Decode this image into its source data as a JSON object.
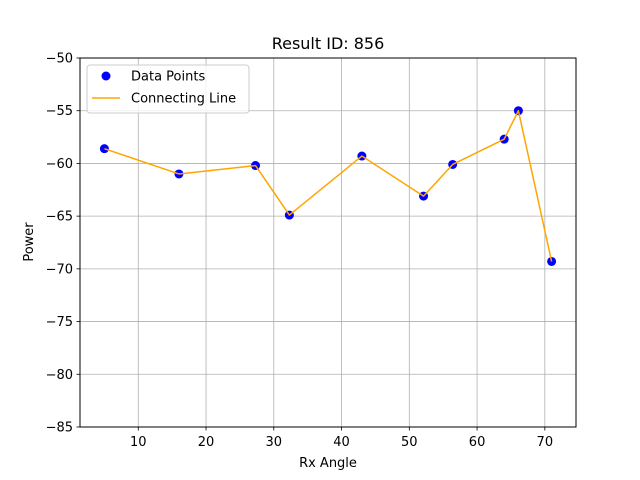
{
  "chart_data": {
    "type": "scatter",
    "title": "Result ID: 856",
    "xlabel": "Rx Angle",
    "ylabel": "Power",
    "xlim": [
      1.4,
      74.6
    ],
    "ylim": [
      -85,
      -50
    ],
    "xticks": [
      10,
      20,
      30,
      40,
      50,
      60,
      70
    ],
    "yticks": [
      -85,
      -80,
      -75,
      -70,
      -65,
      -60,
      -55,
      -50
    ],
    "xtick_labels": [
      "10",
      "20",
      "30",
      "40",
      "50",
      "60",
      "70"
    ],
    "ytick_labels": [
      "−85",
      "−80",
      "−75",
      "−70",
      "−65",
      "−60",
      "−55",
      "−50"
    ],
    "grid": true,
    "legend_position": "top-left",
    "x": [
      5.0,
      16.0,
      27.3,
      32.3,
      43.0,
      52.1,
      56.4,
      64.0,
      66.1,
      71.0
    ],
    "series": [
      {
        "name": "Data Points",
        "kind": "scatter",
        "color": "#0000ff",
        "values": [
          -58.6,
          -61.0,
          -60.2,
          -64.9,
          -59.3,
          -63.1,
          -60.1,
          -57.7,
          -55.0,
          -69.3
        ]
      },
      {
        "name": "Connecting Line",
        "kind": "line",
        "color": "#ffa500",
        "values": [
          -58.6,
          -61.0,
          -60.2,
          -64.9,
          -59.3,
          -63.1,
          -60.1,
          -57.7,
          -55.0,
          -69.3
        ]
      }
    ]
  }
}
